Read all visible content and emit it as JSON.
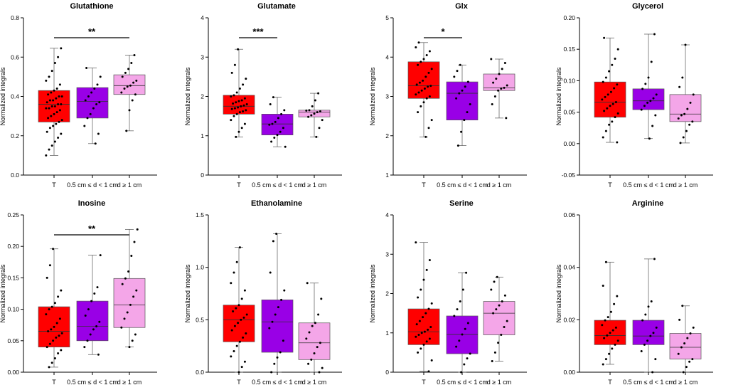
{
  "figure": {
    "ylabel": "Normalized integrals",
    "categories": [
      "T",
      "0.5 cm ≤ d < 1 cm",
      "d ≥ 1 cm"
    ],
    "group_colors": [
      "#ff0000",
      "#9900e6",
      "#f4a6e8"
    ]
  },
  "chart_data": [
    {
      "type": "box",
      "title": "Glutathione",
      "ylim": [
        0,
        0.8
      ],
      "yticks": [
        0.0,
        0.2,
        0.4,
        0.6,
        0.8
      ],
      "tick_labels": [
        "0.0",
        "0.2",
        "0.4",
        "0.6",
        "0.8"
      ],
      "series": [
        {
          "name": "T",
          "min": 0.1,
          "q1": 0.27,
          "median": 0.36,
          "q3": 0.43,
          "max": 0.645,
          "points": [
            0.1,
            0.13,
            0.15,
            0.17,
            0.19,
            0.21,
            0.22,
            0.24,
            0.25,
            0.26,
            0.27,
            0.28,
            0.29,
            0.3,
            0.31,
            0.32,
            0.33,
            0.34,
            0.34,
            0.35,
            0.35,
            0.36,
            0.36,
            0.37,
            0.38,
            0.38,
            0.39,
            0.4,
            0.4,
            0.41,
            0.42,
            0.43,
            0.44,
            0.46,
            0.48,
            0.5,
            0.53,
            0.57,
            0.6,
            0.645
          ]
        },
        {
          "name": "0.5 cm ≤ d < 1 cm",
          "min": 0.16,
          "q1": 0.29,
          "median": 0.375,
          "q3": 0.445,
          "max": 0.545,
          "points": [
            0.16,
            0.21,
            0.25,
            0.29,
            0.31,
            0.34,
            0.36,
            0.37,
            0.38,
            0.4,
            0.42,
            0.44,
            0.46,
            0.5,
            0.545
          ]
        },
        {
          "name": "d ≥ 1 cm",
          "min": 0.225,
          "q1": 0.41,
          "median": 0.455,
          "q3": 0.51,
          "max": 0.61,
          "points": [
            0.225,
            0.33,
            0.38,
            0.41,
            0.42,
            0.44,
            0.45,
            0.455,
            0.47,
            0.48,
            0.5,
            0.52,
            0.54,
            0.57,
            0.61
          ]
        }
      ],
      "significance": [
        {
          "from": 0,
          "to": 2,
          "label": "**"
        }
      ]
    },
    {
      "type": "box",
      "title": "Glutamate",
      "ylim": [
        0,
        4
      ],
      "yticks": [
        0,
        1,
        2,
        3,
        4
      ],
      "tick_labels": [
        "0",
        "1",
        "2",
        "3",
        "4"
      ],
      "series": [
        {
          "name": "T",
          "min": 0.97,
          "q1": 1.55,
          "median": 1.75,
          "q3": 2.03,
          "max": 3.2,
          "points": [
            0.97,
            1.1,
            1.2,
            1.3,
            1.4,
            1.5,
            1.55,
            1.6,
            1.62,
            1.65,
            1.68,
            1.7,
            1.72,
            1.75,
            1.77,
            1.8,
            1.82,
            1.85,
            1.88,
            1.9,
            1.95,
            2.0,
            2.03,
            2.1,
            2.2,
            2.3,
            2.45,
            2.6,
            2.8,
            3.2
          ]
        },
        {
          "name": "0.5 cm ≤ d < 1 cm",
          "min": 0.72,
          "q1": 1.02,
          "median": 1.3,
          "q3": 1.55,
          "max": 1.98,
          "points": [
            0.72,
            0.85,
            0.95,
            1.02,
            1.1,
            1.2,
            1.28,
            1.3,
            1.35,
            1.45,
            1.55,
            1.65,
            1.8,
            1.98
          ]
        },
        {
          "name": "d ≥ 1 cm",
          "min": 0.97,
          "q1": 1.48,
          "median": 1.6,
          "q3": 1.65,
          "max": 2.08,
          "points": [
            0.97,
            1.2,
            1.4,
            1.48,
            1.52,
            1.56,
            1.6,
            1.62,
            1.64,
            1.65,
            1.75,
            1.9,
            2.08
          ]
        }
      ],
      "significance": [
        {
          "from": 0,
          "to": 1,
          "label": "***"
        }
      ]
    },
    {
      "type": "box",
      "title": "Glx",
      "ylim": [
        1,
        5
      ],
      "yticks": [
        1,
        2,
        3,
        4,
        5
      ],
      "tick_labels": [
        "1",
        "2",
        "3",
        "4",
        "5"
      ],
      "series": [
        {
          "name": "T",
          "min": 1.97,
          "q1": 2.95,
          "median": 3.27,
          "q3": 3.88,
          "max": 4.37,
          "points": [
            1.97,
            2.2,
            2.4,
            2.6,
            2.75,
            2.85,
            2.95,
            3.0,
            3.05,
            3.1,
            3.15,
            3.2,
            3.25,
            3.27,
            3.3,
            3.35,
            3.4,
            3.5,
            3.6,
            3.7,
            3.8,
            3.88,
            3.95,
            4.05,
            4.15,
            4.25,
            4.37
          ]
        },
        {
          "name": "0.5 cm ≤ d < 1 cm",
          "min": 1.75,
          "q1": 2.4,
          "median": 3.08,
          "q3": 3.37,
          "max": 3.8,
          "points": [
            1.75,
            2.1,
            2.4,
            2.6,
            2.8,
            2.95,
            3.08,
            3.15,
            3.25,
            3.37,
            3.5,
            3.65,
            3.8
          ]
        },
        {
          "name": "d ≥ 1 cm",
          "min": 2.45,
          "q1": 3.15,
          "median": 3.22,
          "q3": 3.57,
          "max": 3.95,
          "points": [
            2.45,
            2.8,
            3.0,
            3.15,
            3.2,
            3.22,
            3.28,
            3.35,
            3.45,
            3.57,
            3.7,
            3.85,
            3.95
          ]
        }
      ],
      "significance": [
        {
          "from": 0,
          "to": 1,
          "label": "*"
        }
      ]
    },
    {
      "type": "box",
      "title": "Glycerol",
      "ylim": [
        -0.05,
        0.2
      ],
      "yticks": [
        -0.05,
        0.0,
        0.05,
        0.1,
        0.15,
        0.2
      ],
      "tick_labels": [
        "-0.05",
        "0.00",
        "0.05",
        "0.10",
        "0.15",
        "0.20"
      ],
      "series": [
        {
          "name": "T",
          "min": 0.002,
          "q1": 0.042,
          "median": 0.066,
          "q3": 0.098,
          "max": 0.168,
          "points": [
            0.002,
            0.01,
            0.02,
            0.03,
            0.035,
            0.042,
            0.048,
            0.052,
            0.056,
            0.06,
            0.063,
            0.066,
            0.07,
            0.074,
            0.078,
            0.082,
            0.088,
            0.094,
            0.098,
            0.105,
            0.115,
            0.125,
            0.135,
            0.15,
            0.168
          ]
        },
        {
          "name": "0.5 cm ≤ d < 1 cm",
          "min": 0.008,
          "q1": 0.054,
          "median": 0.068,
          "q3": 0.087,
          "max": 0.174,
          "points": [
            0.008,
            0.028,
            0.045,
            0.054,
            0.06,
            0.065,
            0.068,
            0.072,
            0.078,
            0.087,
            0.095,
            0.105,
            0.13,
            0.174
          ]
        },
        {
          "name": "d ≥ 1 cm",
          "min": 0.001,
          "q1": 0.035,
          "median": 0.047,
          "q3": 0.078,
          "max": 0.157,
          "points": [
            0.001,
            0.01,
            0.02,
            0.03,
            0.035,
            0.04,
            0.045,
            0.047,
            0.055,
            0.065,
            0.078,
            0.09,
            0.105,
            0.157
          ]
        }
      ],
      "significance": []
    },
    {
      "type": "box",
      "title": "Inosine",
      "ylim": [
        0,
        0.25
      ],
      "yticks": [
        0.0,
        0.05,
        0.1,
        0.15,
        0.2,
        0.25
      ],
      "tick_labels": [
        "0.00",
        "0.05",
        "0.10",
        "0.15",
        "0.20",
        "0.25"
      ],
      "series": [
        {
          "name": "T",
          "min": 0.008,
          "q1": 0.04,
          "median": 0.065,
          "q3": 0.104,
          "max": 0.196,
          "points": [
            0.008,
            0.015,
            0.022,
            0.03,
            0.035,
            0.04,
            0.045,
            0.05,
            0.055,
            0.058,
            0.062,
            0.065,
            0.068,
            0.072,
            0.078,
            0.085,
            0.092,
            0.1,
            0.104,
            0.11,
            0.12,
            0.13,
            0.15,
            0.17,
            0.196
          ]
        },
        {
          "name": "0.5 cm ≤ d < 1 cm",
          "min": 0.028,
          "q1": 0.05,
          "median": 0.073,
          "q3": 0.113,
          "max": 0.186,
          "points": [
            0.028,
            0.04,
            0.05,
            0.06,
            0.068,
            0.073,
            0.08,
            0.09,
            0.1,
            0.113,
            0.125,
            0.135,
            0.186
          ]
        },
        {
          "name": "d ≥ 1 cm",
          "min": 0.04,
          "q1": 0.071,
          "median": 0.107,
          "q3": 0.149,
          "max": 0.227,
          "points": [
            0.04,
            0.05,
            0.06,
            0.071,
            0.085,
            0.095,
            0.107,
            0.12,
            0.13,
            0.14,
            0.149,
            0.16,
            0.185,
            0.207,
            0.227
          ]
        }
      ],
      "significance": [
        {
          "from": 0,
          "to": 2,
          "label": "**"
        }
      ]
    },
    {
      "type": "box",
      "title": "Ethanolamine",
      "ylim": [
        0,
        1.5
      ],
      "yticks": [
        0.0,
        0.5,
        1.0,
        1.5
      ],
      "tick_labels": [
        "0.0",
        "0.5",
        "1.0",
        "1.5"
      ],
      "series": [
        {
          "name": "T",
          "min": 0.0,
          "q1": 0.29,
          "median": 0.5,
          "q3": 0.64,
          "max": 1.19,
          "points": [
            0.0,
            0.05,
            0.1,
            0.15,
            0.2,
            0.25,
            0.29,
            0.33,
            0.37,
            0.4,
            0.44,
            0.47,
            0.5,
            0.52,
            0.55,
            0.58,
            0.61,
            0.64,
            0.7,
            0.78,
            0.85,
            0.95,
            1.05,
            1.19
          ]
        },
        {
          "name": "0.5 cm ≤ d < 1 cm",
          "min": 0.0,
          "q1": 0.19,
          "median": 0.48,
          "q3": 0.69,
          "max": 1.32,
          "points": [
            0.0,
            0.08,
            0.14,
            0.19,
            0.3,
            0.42,
            0.48,
            0.55,
            0.62,
            0.69,
            0.78,
            0.95,
            1.25,
            1.32
          ]
        },
        {
          "name": "d ≥ 1 cm",
          "min": 0.0,
          "q1": 0.12,
          "median": 0.28,
          "q3": 0.47,
          "max": 0.85,
          "points": [
            0.0,
            0.04,
            0.08,
            0.12,
            0.18,
            0.24,
            0.28,
            0.32,
            0.38,
            0.44,
            0.47,
            0.55,
            0.7,
            0.85
          ]
        }
      ],
      "significance": []
    },
    {
      "type": "box",
      "title": "Serine",
      "ylim": [
        0,
        4
      ],
      "yticks": [
        0,
        1,
        2,
        3,
        4
      ],
      "tick_labels": [
        "0",
        "1",
        "2",
        "3",
        "4"
      ],
      "series": [
        {
          "name": "T",
          "min": 0.02,
          "q1": 0.7,
          "median": 1.03,
          "q3": 1.61,
          "max": 3.3,
          "points": [
            0.02,
            0.3,
            0.5,
            0.6,
            0.7,
            0.78,
            0.85,
            0.9,
            0.95,
            1.0,
            1.03,
            1.08,
            1.15,
            1.22,
            1.3,
            1.4,
            1.5,
            1.61,
            1.75,
            1.9,
            2.1,
            2.35,
            2.6,
            2.85,
            3.3
          ]
        },
        {
          "name": "0.5 cm ≤ d < 1 cm",
          "min": 0.0,
          "q1": 0.47,
          "median": 0.96,
          "q3": 1.43,
          "max": 2.53,
          "points": [
            0.0,
            0.2,
            0.35,
            0.47,
            0.65,
            0.8,
            0.96,
            1.1,
            1.25,
            1.43,
            1.6,
            1.8,
            2.1,
            2.53
          ]
        },
        {
          "name": "d ≥ 1 cm",
          "min": 0.28,
          "q1": 0.95,
          "median": 1.5,
          "q3": 1.8,
          "max": 2.42,
          "points": [
            0.28,
            0.5,
            0.75,
            0.95,
            1.15,
            1.3,
            1.5,
            1.6,
            1.7,
            1.8,
            1.95,
            2.1,
            2.3,
            2.42
          ]
        }
      ],
      "significance": []
    },
    {
      "type": "box",
      "title": "Arginine",
      "ylim": [
        0,
        0.06
      ],
      "yticks": [
        0.0,
        0.02,
        0.04,
        0.06
      ],
      "tick_labels": [
        "0.00",
        "0.02",
        "0.04",
        "0.06"
      ],
      "series": [
        {
          "name": "T",
          "min": 0.003,
          "q1": 0.0105,
          "median": 0.014,
          "q3": 0.0198,
          "max": 0.042,
          "points": [
            0.003,
            0.005,
            0.007,
            0.009,
            0.0105,
            0.012,
            0.013,
            0.014,
            0.015,
            0.016,
            0.017,
            0.018,
            0.0198,
            0.021,
            0.023,
            0.026,
            0.029,
            0.033,
            0.042
          ]
        },
        {
          "name": "0.5 cm ≤ d < 1 cm",
          "min": 0.0,
          "q1": 0.0105,
          "median": 0.0138,
          "q3": 0.0198,
          "max": 0.0432,
          "points": [
            0.0,
            0.005,
            0.008,
            0.0105,
            0.012,
            0.0138,
            0.015,
            0.017,
            0.0198,
            0.022,
            0.025,
            0.027,
            0.0432
          ]
        },
        {
          "name": "d ≥ 1 cm",
          "min": 0.0,
          "q1": 0.005,
          "median": 0.0095,
          "q3": 0.0148,
          "max": 0.0253,
          "points": [
            0.0,
            0.002,
            0.004,
            0.005,
            0.007,
            0.0095,
            0.011,
            0.013,
            0.0148,
            0.017,
            0.02,
            0.0253
          ]
        }
      ],
      "significance": []
    }
  ]
}
